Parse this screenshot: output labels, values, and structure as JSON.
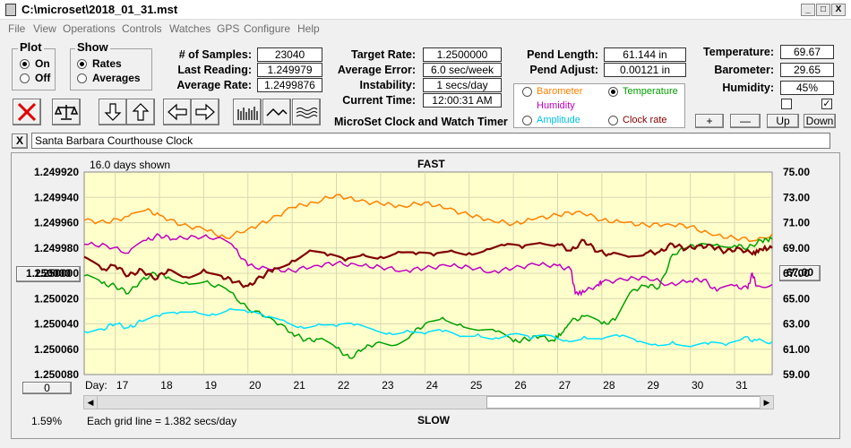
{
  "window": {
    "title": "C:\\microset\\2018_01_31.mst",
    "minimize": "_",
    "maximize": "□",
    "close": "X"
  },
  "menu": [
    "File",
    "View",
    "Operations",
    "Controls",
    "Watches",
    "GPS",
    "Configure",
    "Help"
  ],
  "plot_group": {
    "title": "Plot",
    "on": "On",
    "off": "Off",
    "selected": "On"
  },
  "show_group": {
    "title": "Show",
    "rates": "Rates",
    "averages": "Averages",
    "selected": "Rates"
  },
  "stats": {
    "samples_label": "# of Samples:",
    "samples": "23040",
    "last_label": "Last Reading:",
    "last": "1.249979",
    "avg_rate_label": "Average Rate:",
    "avg_rate": "1.2499876",
    "target_label": "Target Rate:",
    "target": "1.2500000",
    "avg_err_label": "Average Error:",
    "avg_err": "6.0 sec/week",
    "instab_label": "Instability:",
    "instab": "1 secs/day",
    "time_label": "Current Time:",
    "time": "12:00:31 AM",
    "pend_len_label": "Pend Length:",
    "pend_len": "61.144 in",
    "pend_adj_label": "Pend Adjust:",
    "pend_adj": "0.00121 in",
    "temp_label": "Temperature:",
    "temp": "69.67",
    "baro_label": "Barometer:",
    "baro": "29.65",
    "hum_label": "Humidity:",
    "hum": "45%"
  },
  "app_name": "MicroSet Clock and Watch Timer",
  "sensor_options": [
    {
      "label": "Barometer",
      "color": "#ff8000",
      "selected": false
    },
    {
      "label": "Temperature",
      "color": "#00a000",
      "selected": true
    },
    {
      "label": "Humidity",
      "color": "#c000c0",
      "selected": false
    },
    {
      "label": "Clock rate",
      "color": "#800000",
      "selected": false
    },
    {
      "label": "Amplitude",
      "color": "#00c0e0",
      "selected": false
    }
  ],
  "sensor_buttons": [
    "+",
    "—",
    "Up",
    "Down"
  ],
  "checkbox_right": "✓",
  "clock_close": "X",
  "clock_name": "Santa Barbara Courthouse Clock",
  "chart_header": {
    "days_shown": "16.0 days shown",
    "fast": "FAST",
    "slow": "SLOW",
    "grid": "Each grid line = 1.382 secs/day",
    "percent": "1.59%",
    "day_label": "Day:"
  },
  "chart_buttons": {
    "left_center": "1.250000",
    "right_center": "67.00",
    "bottom_left": "0"
  },
  "chart_data": {
    "type": "line",
    "y_left_ticks": [
      "1.249920",
      "1.249940",
      "1.249960",
      "1.249980",
      "1.250000",
      "1.250020",
      "1.250040",
      "1.250060",
      "1.250080"
    ],
    "y_right_ticks": [
      "75.00",
      "73.00",
      "71.00",
      "69.00",
      "67.00",
      "65.00",
      "63.00",
      "61.00",
      "59.00"
    ],
    "x_ticks": [
      "17",
      "18",
      "19",
      "20",
      "21",
      "22",
      "23",
      "24",
      "25",
      "26",
      "27",
      "28",
      "29",
      "30",
      "31"
    ],
    "x_range": [
      16.3,
      31.85
    ],
    "y_right_range": [
      59,
      75
    ],
    "series": [
      {
        "name": "Barometer",
        "color": "#ff8000",
        "x": [
          16.3,
          16.8,
          17.3,
          17.7,
          18.0,
          18.5,
          19.0,
          19.5,
          20.0,
          20.5,
          21.0,
          21.5,
          22.0,
          22.5,
          23.0,
          23.5,
          24.0,
          24.5,
          25.0,
          25.5,
          26.0,
          26.5,
          27.0,
          27.5,
          28.0,
          28.5,
          29.0,
          29.5,
          30.0,
          30.5,
          31.0,
          31.5,
          31.85
        ],
        "y": [
          71.2,
          71.0,
          71.5,
          72.0,
          71.6,
          70.8,
          70.5,
          69.8,
          70.5,
          71.2,
          72.2,
          72.6,
          73.2,
          72.7,
          72.5,
          72.3,
          72.6,
          72.1,
          71.6,
          71.2,
          70.9,
          71.3,
          71.6,
          71.9,
          71.2,
          71.0,
          70.8,
          70.9,
          70.7,
          70.0,
          69.8,
          69.6,
          70.1
        ]
      },
      {
        "name": "Temperature",
        "color": "#00a000",
        "x": [
          16.3,
          16.7,
          17.0,
          17.3,
          17.6,
          17.9,
          18.2,
          18.6,
          19.0,
          19.5,
          20.0,
          20.5,
          21.0,
          21.3,
          21.6,
          22.0,
          22.3,
          22.6,
          22.9,
          23.3,
          23.7,
          24.0,
          24.4,
          24.8,
          25.2,
          25.6,
          26.0,
          26.3,
          26.6,
          26.9,
          27.1,
          27.3,
          27.6,
          28.0,
          28.3,
          28.7,
          29.0,
          29.3,
          29.6,
          29.9,
          30.2,
          30.6,
          31.0,
          31.3,
          31.6,
          31.85
        ],
        "y": [
          66.8,
          66.2,
          66.0,
          65.4,
          66.5,
          67.0,
          66.7,
          66.3,
          66.3,
          65.8,
          64.2,
          63.5,
          62.3,
          61.7,
          61.8,
          61.1,
          60.3,
          61.0,
          61.5,
          61.3,
          62.2,
          63.0,
          63.5,
          63.0,
          62.5,
          62.4,
          61.6,
          61.8,
          62.0,
          61.7,
          62.3,
          63.2,
          63.6,
          63.0,
          63.3,
          65.7,
          66.0,
          65.9,
          68.5,
          69.0,
          69.3,
          69.3,
          69.2,
          69.0,
          69.6,
          69.7
        ]
      },
      {
        "name": "Humidity",
        "color": "#c000c0",
        "x": [
          16.3,
          16.8,
          17.3,
          17.7,
          18.0,
          18.3,
          18.8,
          19.3,
          19.7,
          20.0,
          20.5,
          21.0,
          21.5,
          22.0,
          22.5,
          23.0,
          23.5,
          24.0,
          24.5,
          25.0,
          25.5,
          26.0,
          26.5,
          27.0,
          27.3,
          27.4,
          27.6,
          27.9,
          28.0,
          28.5,
          29.0,
          29.5,
          30.0,
          30.3,
          30.6,
          31.0,
          31.3,
          31.4,
          31.5,
          31.85
        ],
        "y": [
          69.3,
          69.2,
          68.6,
          69.6,
          70.0,
          69.7,
          69.9,
          69.8,
          69.0,
          67.6,
          67.3,
          67.2,
          67.6,
          67.8,
          67.6,
          67.5,
          67.2,
          67.4,
          67.6,
          67.5,
          67.1,
          67.4,
          67.7,
          67.6,
          67.3,
          65.4,
          65.5,
          66.1,
          66.3,
          66.5,
          66.7,
          66.1,
          66.4,
          66.5,
          65.6,
          66.0,
          65.8,
          67.0,
          66.0,
          66.1
        ]
      },
      {
        "name": "Clock rate",
        "color": "#800000",
        "x": [
          16.3,
          16.7,
          17.0,
          17.3,
          17.6,
          17.9,
          18.2,
          18.6,
          19.0,
          19.4,
          19.7,
          20.0,
          20.3,
          20.6,
          21.0,
          21.4,
          21.8,
          22.2,
          22.6,
          23.0,
          23.4,
          23.8,
          24.2,
          24.6,
          25.0,
          25.4,
          25.8,
          26.2,
          26.6,
          27.0,
          27.3,
          27.6,
          27.9,
          28.2,
          28.6,
          29.0,
          29.3,
          29.6,
          29.9,
          30.2,
          30.5,
          30.8,
          31.1,
          31.4,
          31.6,
          31.85
        ],
        "y": [
          68.3,
          67.3,
          67.6,
          66.8,
          67.3,
          66.5,
          67.3,
          66.7,
          67.3,
          66.8,
          66.3,
          66.0,
          66.7,
          67.4,
          68.0,
          68.8,
          68.4,
          68.0,
          68.5,
          68.3,
          68.7,
          68.5,
          68.4,
          68.8,
          68.6,
          68.9,
          69.2,
          69.0,
          69.4,
          69.3,
          68.8,
          69.6,
          68.7,
          68.5,
          68.3,
          68.6,
          68.7,
          69.3,
          68.9,
          69.2,
          69.1,
          68.7,
          69.0,
          68.5,
          68.9,
          69.0
        ]
      },
      {
        "name": "Amplitude",
        "color": "#00e0ff",
        "x": [
          16.3,
          16.7,
          17.0,
          17.3,
          17.6,
          18.0,
          18.4,
          18.8,
          19.2,
          19.6,
          20.0,
          20.4,
          20.8,
          21.2,
          21.6,
          22.0,
          22.4,
          22.8,
          23.2,
          23.6,
          24.0,
          24.4,
          24.8,
          25.2,
          25.6,
          26.0,
          26.4,
          26.8,
          27.2,
          27.6,
          28.0,
          28.4,
          28.8,
          29.2,
          29.6,
          30.0,
          30.4,
          30.8,
          31.2,
          31.5,
          31.85
        ],
        "y": [
          62.4,
          62.6,
          63.0,
          62.7,
          63.2,
          63.6,
          63.8,
          64.0,
          63.8,
          64.2,
          63.9,
          63.5,
          63.3,
          62.8,
          63.0,
          62.8,
          62.9,
          62.6,
          62.3,
          62.5,
          62.2,
          62.4,
          62.0,
          62.2,
          61.9,
          62.2,
          61.8,
          62.1,
          61.7,
          62.0,
          61.8,
          62.0,
          61.6,
          61.4,
          61.6,
          61.2,
          61.4,
          61.3,
          61.9,
          61.7,
          61.6
        ]
      }
    ]
  }
}
